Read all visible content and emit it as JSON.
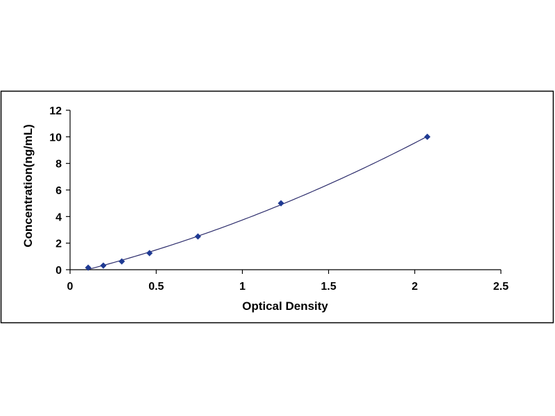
{
  "chart_data": {
    "type": "scatter",
    "title": "",
    "xlabel": "Optical Density",
    "ylabel": "Concentration(ng/mL)",
    "xlim": [
      0,
      2.5
    ],
    "ylim": [
      0,
      12
    ],
    "x_ticks": [
      "0",
      "0.5",
      "1",
      "1.5",
      "2",
      "2.5"
    ],
    "y_ticks": [
      "0",
      "2",
      "4",
      "6",
      "8",
      "10",
      "12"
    ],
    "grid": false,
    "legend": "none",
    "series": [
      {
        "x": [
          0.105,
          0.193,
          0.3,
          0.461,
          0.742,
          1.224,
          2.073
        ],
        "y": [
          0.156,
          0.312,
          0.625,
          1.25,
          2.5,
          5,
          10
        ],
        "marker": "diamond",
        "color": "#1F3A93",
        "fit": "polynomial",
        "line_color": "#2B2B6B"
      }
    ]
  }
}
